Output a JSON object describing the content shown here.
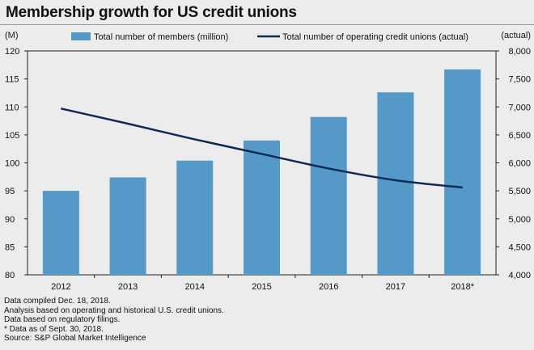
{
  "title": "Membership growth for US credit unions",
  "chart_data": {
    "type": "bar",
    "title": "Membership growth for US credit unions",
    "categories": [
      "2012",
      "2013",
      "2014",
      "2015",
      "2016",
      "2017",
      "2018*"
    ],
    "left_axis_unit": "(M)",
    "right_axis_unit": "(actual)",
    "ylim_left": [
      80,
      120
    ],
    "ylim_right": [
      4000,
      8000
    ],
    "yticks_left": [
      "80",
      "85",
      "90",
      "95",
      "100",
      "105",
      "110",
      "115",
      "120"
    ],
    "yticks_right": [
      "4,000",
      "4,500",
      "5,000",
      "5,500",
      "6,000",
      "6,500",
      "7,000",
      "7,500",
      "8,000"
    ],
    "grid": false,
    "legend_position": "top",
    "series": [
      {
        "name": "Total number of members (million)",
        "type": "bar",
        "axis": "left",
        "color": "#5499c7",
        "values": [
          95.0,
          97.4,
          100.4,
          104.0,
          108.2,
          112.6,
          116.7
        ]
      },
      {
        "name": "Total number of operating credit unions (actual)",
        "type": "line",
        "axis": "right",
        "color": "#0d2b55",
        "values": [
          6970,
          6700,
          6420,
          6160,
          5900,
          5690,
          5560
        ]
      }
    ]
  },
  "notes": [
    "Data compiled Dec. 18, 2018.",
    "Analysis based on operating and historical U.S. credit unions.",
    "Data based on regulatory filings.",
    "* Data as of Sept. 30, 2018.",
    "Source: S&P Global Market Intelligence"
  ]
}
